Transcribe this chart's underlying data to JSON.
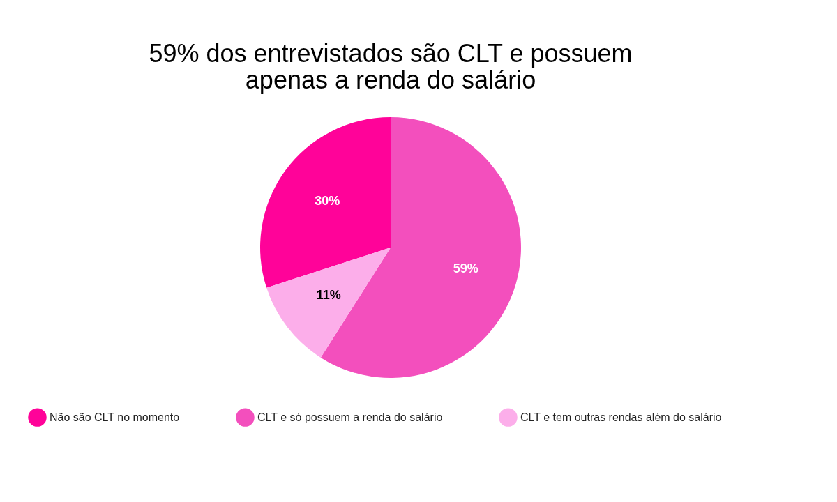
{
  "chart_data": {
    "type": "pie",
    "title": "59% dos entrevistados são CLT e possuem apenas a renda do salário",
    "categories": [
      "Não são CLT no momento",
      "CLT e só possuem a renda do salário",
      "CLT e tem outras rendas além do salário"
    ],
    "values": [
      30,
      59,
      11
    ],
    "colors": [
      "#ff0399",
      "#f34fbd",
      "#fcaeea"
    ],
    "value_labels": [
      "30%",
      "59%",
      "11%"
    ],
    "legend": "bottom"
  }
}
